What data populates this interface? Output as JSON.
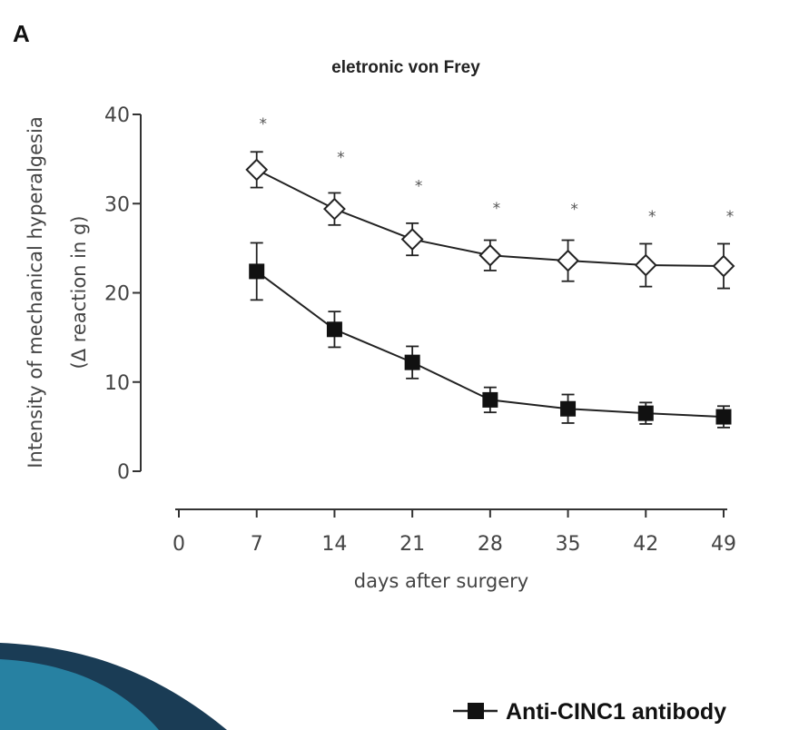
{
  "panel_label": "A",
  "legend": {
    "label": "Anti-CINC1 antibody"
  },
  "colors": {
    "ink": "#222222",
    "axis": "#333333",
    "open_marker_fill": "#ffffff",
    "closed_marker_fill": "#111111",
    "star": "#555555",
    "decor_dark": "#1a3c55",
    "decor_teal": "#2a8db0"
  },
  "chart_data": {
    "type": "line",
    "title": "eletronic von Frey",
    "xlabel": "days after surgery",
    "ylabel_line1": "Intensity of mechanical hyperalgesia",
    "ylabel_line2": "(Δ reaction in g)",
    "x_ticks": [
      0,
      7,
      14,
      21,
      28,
      35,
      42,
      49
    ],
    "y_ticks": [
      0,
      10,
      20,
      30,
      40
    ],
    "xlim": [
      0,
      49
    ],
    "ylim": [
      0,
      40
    ],
    "grid": false,
    "legend_position": "bottom-right",
    "series": [
      {
        "marker": "open-diamond",
        "x": [
          7,
          14,
          21,
          28,
          35,
          42,
          49
        ],
        "y": [
          33.8,
          29.4,
          26.0,
          24.2,
          23.6,
          23.1,
          23.0
        ],
        "err": [
          2.0,
          1.8,
          1.8,
          1.7,
          2.3,
          2.4,
          2.5
        ]
      },
      {
        "name": "Anti-CINC1 antibody",
        "marker": "filled-square",
        "x": [
          7,
          14,
          21,
          28,
          35,
          42,
          49
        ],
        "y": [
          22.4,
          15.9,
          12.2,
          8.0,
          7.0,
          6.5,
          6.1
        ],
        "err": [
          3.2,
          2.0,
          1.8,
          1.4,
          1.6,
          1.2,
          1.2
        ]
      }
    ],
    "annotations": [
      {
        "text": "*",
        "x": 7,
        "y": 39.0
      },
      {
        "text": "*",
        "x": 14,
        "y": 35.2
      },
      {
        "text": "*",
        "x": 21,
        "y": 32.0
      },
      {
        "text": "*",
        "x": 28,
        "y": 29.5
      },
      {
        "text": "*",
        "x": 35,
        "y": 29.4
      },
      {
        "text": "*",
        "x": 42,
        "y": 28.6
      },
      {
        "text": "*",
        "x": 49,
        "y": 28.6
      }
    ]
  }
}
